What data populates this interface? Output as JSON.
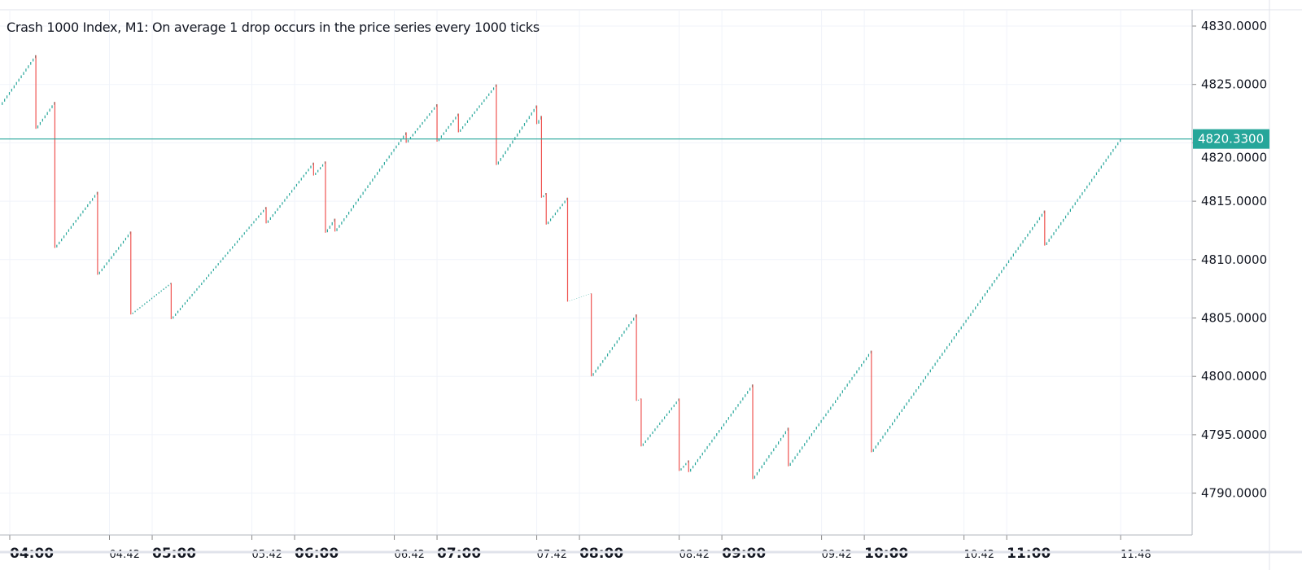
{
  "chart_data": {
    "type": "line",
    "title": "Crash 1000 Index, M1: On average 1 drop occurs in the price series every 1000 ticks",
    "x_start": "03:56",
    "x_end_display": "12:10",
    "ylim": [
      4787,
      4831.5
    ],
    "y_ticks": [
      "4830.0000",
      "4825.0000",
      "4820.0000",
      "4815.0000",
      "4810.0000",
      "4805.0000",
      "4800.0000",
      "4795.0000",
      "4790.0000"
    ],
    "x_ticks": [
      {
        "time": "04:00",
        "label": "04:00",
        "major": true
      },
      {
        "time": "04:42",
        "label": "04:42",
        "major": false
      },
      {
        "time": "05:00",
        "label": "05:00",
        "major": true
      },
      {
        "time": "05:42",
        "label": "05:42",
        "major": false
      },
      {
        "time": "06:00",
        "label": "06:00",
        "major": true
      },
      {
        "time": "06:42",
        "label": "06:42",
        "major": false
      },
      {
        "time": "07:00",
        "label": "07:00",
        "major": true
      },
      {
        "time": "07:42",
        "label": "07:42",
        "major": false
      },
      {
        "time": "08:00",
        "label": "08:00",
        "major": true
      },
      {
        "time": "08:42",
        "label": "08:42",
        "major": false
      },
      {
        "time": "09:00",
        "label": "09:00",
        "major": true
      },
      {
        "time": "09:42",
        "label": "09:42",
        "major": false
      },
      {
        "time": "10:00",
        "label": "10:00",
        "major": true
      },
      {
        "time": "10:42",
        "label": "10:42",
        "major": false
      },
      {
        "time": "11:00",
        "label": "11:00",
        "major": true
      },
      {
        "time": "11:48",
        "label": "11:48",
        "major": false
      }
    ],
    "last_price": 4820.33,
    "last_price_label": "4820.3300",
    "grid": true,
    "colors": {
      "up": "#26a69a",
      "down": "#ef5350",
      "last_price": "#26a69a",
      "grid": "#f0f3fa",
      "axis": "#b2b5be"
    },
    "points": [
      [
        "03:56",
        4823.2
      ],
      [
        "04:11",
        4827.5
      ],
      [
        "04:11",
        4821.2
      ],
      [
        "04:19",
        4823.5
      ],
      [
        "04:19",
        4811.0
      ],
      [
        "04:37",
        4815.8
      ],
      [
        "04:37",
        4808.7
      ],
      [
        "04:51",
        4812.4
      ],
      [
        "04:51",
        4805.3
      ],
      [
        "05:08",
        4808.0
      ],
      [
        "05:08",
        4804.9
      ],
      [
        "05:48",
        4814.5
      ],
      [
        "05:48",
        4813.1
      ],
      [
        "06:08",
        4818.3
      ],
      [
        "06:08",
        4817.2
      ],
      [
        "06:13",
        4818.4
      ],
      [
        "06:13",
        4812.3
      ],
      [
        "06:17",
        4813.5
      ],
      [
        "06:17",
        4812.4
      ],
      [
        "06:47",
        4820.9
      ],
      [
        "06:47",
        4820.0
      ],
      [
        "07:00",
        4823.3
      ],
      [
        "07:00",
        4820.1
      ],
      [
        "07:09",
        4822.5
      ],
      [
        "07:09",
        4820.9
      ],
      [
        "07:25",
        4825.0
      ],
      [
        "07:25",
        4818.1
      ],
      [
        "07:42",
        4823.2
      ],
      [
        "07:42",
        4821.6
      ],
      [
        "07:44",
        4822.3
      ],
      [
        "07:44",
        4815.3
      ],
      [
        "07:46",
        4815.7
      ],
      [
        "07:46",
        4813.0
      ],
      [
        "07:55",
        4815.3
      ],
      [
        "07:55",
        4806.4
      ],
      [
        "08:05",
        4807.1
      ],
      [
        "08:05",
        4800.0
      ],
      [
        "08:24",
        4805.3
      ],
      [
        "08:24",
        4797.9
      ],
      [
        "08:26",
        4798.1
      ],
      [
        "08:26",
        4794.0
      ],
      [
        "08:42",
        4798.1
      ],
      [
        "08:42",
        4791.9
      ],
      [
        "08:46",
        4792.8
      ],
      [
        "08:46",
        4791.8
      ],
      [
        "09:13",
        4799.3
      ],
      [
        "09:13",
        4791.2
      ],
      [
        "09:28",
        4795.6
      ],
      [
        "09:28",
        4792.3
      ],
      [
        "10:03",
        4802.2
      ],
      [
        "10:03",
        4793.5
      ],
      [
        "11:16",
        4814.2
      ],
      [
        "11:16",
        4811.2
      ],
      [
        "11:48",
        4820.33
      ]
    ]
  }
}
